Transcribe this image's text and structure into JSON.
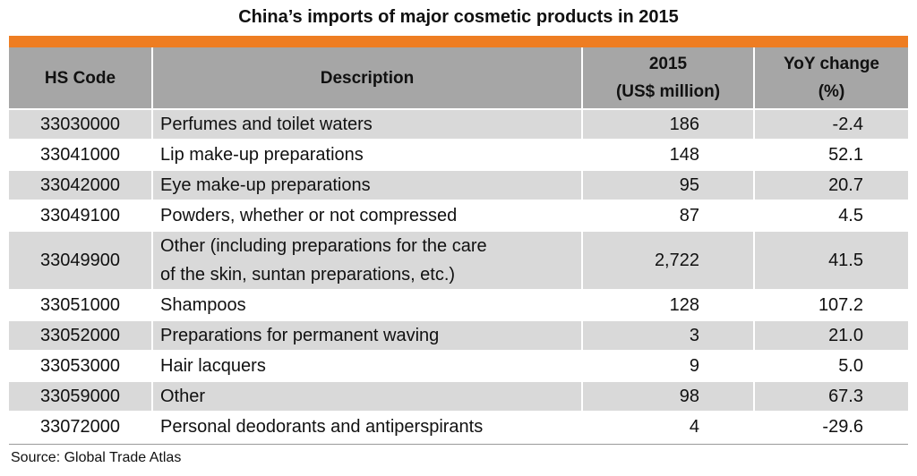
{
  "colors": {
    "accent": "#ee7d22",
    "header_bg": "#a6a6a6",
    "row_shaded": "#d9d9d9",
    "row_plain": "#ffffff"
  },
  "chart_data": {
    "type": "table",
    "title": "China’s imports of major cosmetic products in 2015",
    "columns": [
      {
        "key": "code",
        "lines": [
          "HS Code"
        ]
      },
      {
        "key": "desc",
        "lines": [
          "Description"
        ]
      },
      {
        "key": "value",
        "lines": [
          "2015",
          "(US$ million)"
        ]
      },
      {
        "key": "yoy",
        "lines": [
          "YoY change",
          "(%)"
        ]
      }
    ],
    "rows": [
      {
        "code": "33030000",
        "desc": [
          "Perfumes and toilet waters"
        ],
        "value": "186",
        "yoy": "-2.4"
      },
      {
        "code": "33041000",
        "desc": [
          "Lip make-up preparations"
        ],
        "value": "148",
        "yoy": "52.1"
      },
      {
        "code": "33042000",
        "desc": [
          "Eye make-up preparations"
        ],
        "value": "95",
        "yoy": "20.7"
      },
      {
        "code": "33049100",
        "desc": [
          "Powders, whether or not compressed"
        ],
        "value": "87",
        "yoy": "4.5"
      },
      {
        "code": "33049900",
        "desc": [
          "Other (including preparations for the care",
          "of the skin, suntan preparations, etc.)"
        ],
        "value": "2,722",
        "yoy": "41.5"
      },
      {
        "code": "33051000",
        "desc": [
          "Shampoos"
        ],
        "value": "128",
        "yoy": "107.2"
      },
      {
        "code": "33052000",
        "desc": [
          "Preparations for permanent waving"
        ],
        "value": "3",
        "yoy": "21.0"
      },
      {
        "code": "33053000",
        "desc": [
          "Hair lacquers"
        ],
        "value": "9",
        "yoy": "5.0"
      },
      {
        "code": "33059000",
        "desc": [
          "Other"
        ],
        "value": "98",
        "yoy": "67.3"
      },
      {
        "code": "33072000",
        "desc": [
          "Personal deodorants and antiperspirants"
        ],
        "value": "4",
        "yoy": "-29.6"
      }
    ],
    "source": "Source: Global Trade Atlas"
  }
}
